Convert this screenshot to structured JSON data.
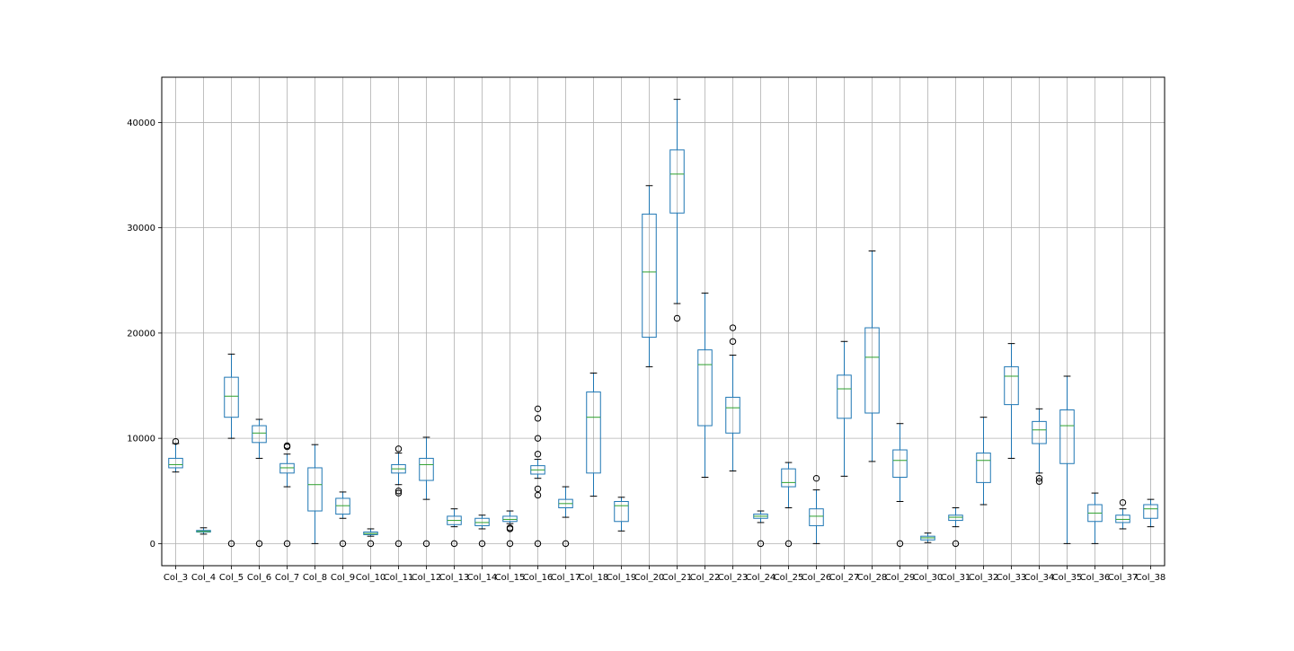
{
  "chart_data": {
    "type": "box",
    "title": "",
    "xlabel": "",
    "ylabel": "",
    "ylim": [
      -2100,
      44300
    ],
    "yticks": [
      0,
      10000,
      20000,
      30000,
      40000
    ],
    "grid": true,
    "legend": "none",
    "colors": {
      "box": "#1f77b4",
      "median": "#2ca02c",
      "whisker": "#1f77b4",
      "cap": "#000000",
      "flier": "#000000",
      "grid": "#b0b0b0"
    },
    "categories": [
      "Col_3",
      "Col_4",
      "Col_5",
      "Col_6",
      "Col_7",
      "Col_8",
      "Col_9",
      "Col_10",
      "Col_11",
      "Col_12",
      "Col_13",
      "Col_14",
      "Col_15",
      "Col_16",
      "Col_17",
      "Col_18",
      "Col_19",
      "Col_20",
      "Col_21",
      "Col_22",
      "Col_23",
      "Col_24",
      "Col_25",
      "Col_26",
      "Col_27",
      "Col_28",
      "Col_29",
      "Col_30",
      "Col_31",
      "Col_32",
      "Col_33",
      "Col_34",
      "Col_35",
      "Col_36",
      "Col_37",
      "Col_38"
    ],
    "boxes": [
      {
        "whislo": 6800,
        "q1": 7200,
        "med": 7500,
        "q3": 8100,
        "whishi": 9500,
        "fliers": [
          9700
        ]
      },
      {
        "whislo": 900,
        "q1": 1100,
        "med": 1150,
        "q3": 1250,
        "whishi": 1500,
        "fliers": []
      },
      {
        "whislo": 10000,
        "q1": 12000,
        "med": 14000,
        "q3": 15800,
        "whishi": 18000,
        "fliers": [
          0
        ]
      },
      {
        "whislo": 8100,
        "q1": 9600,
        "med": 10500,
        "q3": 11200,
        "whishi": 11800,
        "fliers": [
          0
        ]
      },
      {
        "whislo": 5400,
        "q1": 6700,
        "med": 7200,
        "q3": 7600,
        "whishi": 8500,
        "fliers": [
          0,
          9300,
          9200
        ]
      },
      {
        "whislo": 0,
        "q1": 3100,
        "med": 5600,
        "q3": 7200,
        "whishi": 9400,
        "fliers": []
      },
      {
        "whislo": 2400,
        "q1": 2800,
        "med": 3600,
        "q3": 4300,
        "whishi": 4900,
        "fliers": [
          0
        ]
      },
      {
        "whislo": 700,
        "q1": 850,
        "med": 950,
        "q3": 1100,
        "whishi": 1400,
        "fliers": [
          0
        ]
      },
      {
        "whislo": 5600,
        "q1": 6700,
        "med": 7100,
        "q3": 7500,
        "whishi": 8600,
        "fliers": [
          0,
          4800,
          5000,
          9000
        ]
      },
      {
        "whislo": 4200,
        "q1": 6000,
        "med": 7500,
        "q3": 8100,
        "whishi": 10100,
        "fliers": [
          0
        ]
      },
      {
        "whislo": 1600,
        "q1": 1800,
        "med": 2200,
        "q3": 2600,
        "whishi": 3300,
        "fliers": [
          0
        ]
      },
      {
        "whislo": 1400,
        "q1": 1700,
        "med": 2000,
        "q3": 2400,
        "whishi": 2700,
        "fliers": [
          0
        ]
      },
      {
        "whislo": 1900,
        "q1": 2100,
        "med": 2300,
        "q3": 2600,
        "whishi": 3100,
        "fliers": [
          0,
          1400,
          1500
        ]
      },
      {
        "whislo": 6200,
        "q1": 6600,
        "med": 7000,
        "q3": 7400,
        "whishi": 8000,
        "fliers": [
          0,
          4600,
          5200,
          8500,
          10000,
          11900,
          12800
        ]
      },
      {
        "whislo": 2500,
        "q1": 3400,
        "med": 3800,
        "q3": 4200,
        "whishi": 5400,
        "fliers": [
          0
        ]
      },
      {
        "whislo": 4500,
        "q1": 6700,
        "med": 12000,
        "q3": 14400,
        "whishi": 16200,
        "fliers": []
      },
      {
        "whislo": 1200,
        "q1": 2100,
        "med": 3600,
        "q3": 4000,
        "whishi": 4400,
        "fliers": []
      },
      {
        "whislo": 16800,
        "q1": 19600,
        "med": 25800,
        "q3": 31300,
        "whishi": 34000,
        "fliers": []
      },
      {
        "whislo": 22800,
        "q1": 31400,
        "med": 35100,
        "q3": 37400,
        "whishi": 42200,
        "fliers": [
          21400
        ]
      },
      {
        "whislo": 6300,
        "q1": 11200,
        "med": 17000,
        "q3": 18400,
        "whishi": 23800,
        "fliers": []
      },
      {
        "whislo": 6900,
        "q1": 10500,
        "med": 12900,
        "q3": 13900,
        "whishi": 17900,
        "fliers": [
          19200,
          20500
        ]
      },
      {
        "whislo": 2000,
        "q1": 2400,
        "med": 2600,
        "q3": 2800,
        "whishi": 3100,
        "fliers": [
          0
        ]
      },
      {
        "whislo": 3400,
        "q1": 5400,
        "med": 5800,
        "q3": 7100,
        "whishi": 7700,
        "fliers": [
          0
        ]
      },
      {
        "whislo": 0,
        "q1": 1700,
        "med": 2600,
        "q3": 3300,
        "whishi": 5100,
        "fliers": [
          6200
        ]
      },
      {
        "whislo": 6400,
        "q1": 11900,
        "med": 14700,
        "q3": 16000,
        "whishi": 19200,
        "fliers": []
      },
      {
        "whislo": 7800,
        "q1": 12400,
        "med": 17700,
        "q3": 20500,
        "whishi": 27800,
        "fliers": []
      },
      {
        "whislo": 4000,
        "q1": 6300,
        "med": 7900,
        "q3": 8900,
        "whishi": 11400,
        "fliers": [
          0
        ]
      },
      {
        "whislo": 100,
        "q1": 350,
        "med": 550,
        "q3": 700,
        "whishi": 1000,
        "fliers": []
      },
      {
        "whislo": 1600,
        "q1": 2200,
        "med": 2500,
        "q3": 2700,
        "whishi": 3400,
        "fliers": [
          0
        ]
      },
      {
        "whislo": 3700,
        "q1": 5800,
        "med": 7900,
        "q3": 8600,
        "whishi": 12000,
        "fliers": []
      },
      {
        "whislo": 8100,
        "q1": 13200,
        "med": 15900,
        "q3": 16800,
        "whishi": 19000,
        "fliers": []
      },
      {
        "whislo": 6700,
        "q1": 9500,
        "med": 10800,
        "q3": 11600,
        "whishi": 12800,
        "fliers": [
          5900,
          6200
        ]
      },
      {
        "whislo": 0,
        "q1": 7600,
        "med": 11200,
        "q3": 12700,
        "whishi": 15900,
        "fliers": []
      },
      {
        "whislo": 0,
        "q1": 2100,
        "med": 2900,
        "q3": 3700,
        "whishi": 4800,
        "fliers": []
      },
      {
        "whislo": 1400,
        "q1": 2000,
        "med": 2300,
        "q3": 2700,
        "whishi": 3300,
        "fliers": [
          3900
        ]
      },
      {
        "whislo": 1600,
        "q1": 2400,
        "med": 3300,
        "q3": 3700,
        "whishi": 4200,
        "fliers": []
      }
    ]
  }
}
